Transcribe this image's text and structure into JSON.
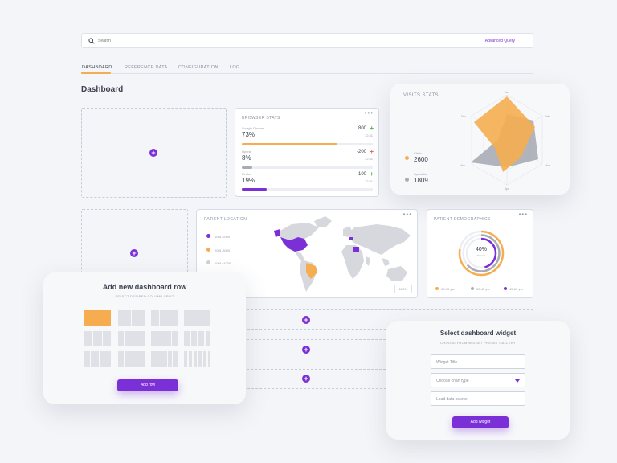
{
  "search": {
    "placeholder": "Search",
    "advanced_label": "Advanced Query"
  },
  "tabs": [
    {
      "label": "DASHBOARD",
      "active": true
    },
    {
      "label": "REFERENCE DATA",
      "active": false
    },
    {
      "label": "CONFIGURATION",
      "active": false
    },
    {
      "label": "LOG",
      "active": false
    }
  ],
  "page_title": "Dashboard",
  "colors": {
    "accent": "#7b2fd6",
    "orange": "#f5ad4f",
    "gray": "#a9acb5",
    "green": "#4caf50",
    "red": "#e35d5d"
  },
  "browser_stats": {
    "title": "BROWSER STATS",
    "rows": [
      {
        "name": "Google Chrome",
        "percent": "73%",
        "count": "800",
        "change": "+",
        "sub": "12:31",
        "fill": 0.73,
        "color": "#f5ad4f",
        "trend": "up"
      },
      {
        "name": "Opera",
        "percent": "8%",
        "count": "-200",
        "change": "+",
        "sub": "12:31",
        "fill": 0.08,
        "color": "#a9acb5",
        "trend": "down"
      },
      {
        "name": "Firefox",
        "percent": "19%",
        "count": "100",
        "change": "+",
        "sub": "12:31",
        "fill": 0.19,
        "color": "#7b2fd6",
        "trend": "up"
      }
    ]
  },
  "visits_stats": {
    "title": "VISITS STATS",
    "legend": [
      {
        "label": "Clinic",
        "value": "2600",
        "color": "#f5ad4f"
      },
      {
        "label": "Specialist",
        "value": "1809",
        "color": "#a9acb5"
      }
    ],
    "axes": [
      "Jan",
      "Feb",
      "Mar",
      "Apr",
      "May",
      "Dec"
    ]
  },
  "patient_location": {
    "title": "PATIENT LOCATION",
    "legend": [
      {
        "label": "1001-2000",
        "color": "#7b2fd6"
      },
      {
        "label": "2001-3000",
        "color": "#f5ad4f"
      },
      {
        "label": "1001+1000",
        "color": "#cfd2da"
      }
    ],
    "footer_button": "100%"
  },
  "patient_demographics": {
    "title": "PATIENT DEMOGRAPHICS",
    "center_value": "40%",
    "center_label": "Patients",
    "legend": [
      {
        "label": "18-30 y.o.",
        "color": "#f5ad4f"
      },
      {
        "label": "30-45 y.o.",
        "color": "#a9acb5"
      },
      {
        "label": "45-60 y.o.",
        "color": "#7b2fd6"
      }
    ]
  },
  "add_row_modal": {
    "title": "Add new dashboard row",
    "subtitle": "SELECT DESIRED COLUMN SPLIT",
    "button": "Add row"
  },
  "select_widget_modal": {
    "title": "Select dashboard widget",
    "subtitle": "CHOOSE FROM WIDGET PRESET GALLERY",
    "field_title": "Widget Title",
    "field_chart": "Choose chart type",
    "field_source": "Load data source",
    "button": "Add widget"
  }
}
